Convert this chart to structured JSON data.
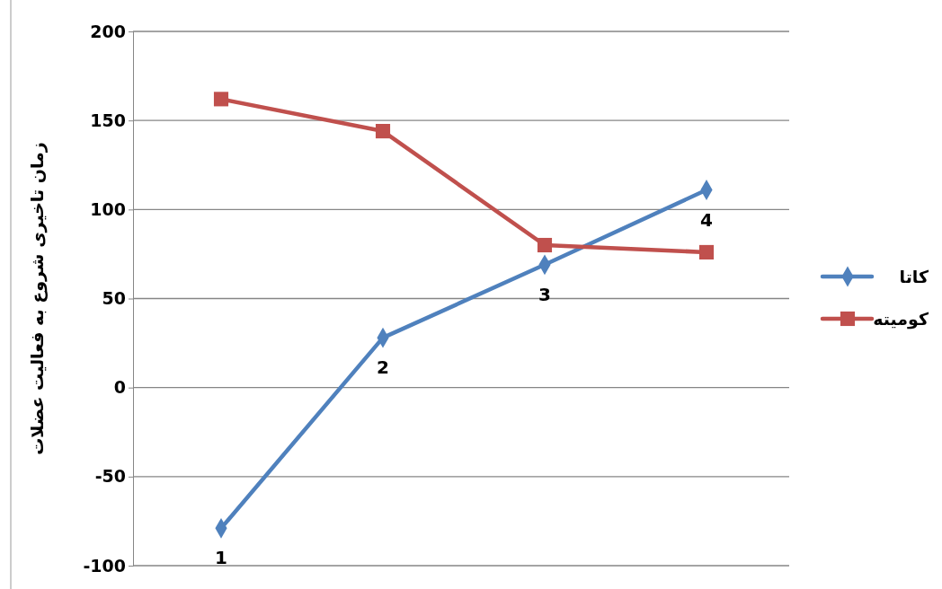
{
  "chart_data": {
    "type": "line",
    "ylabel": "زمان تاخیری شروع به فعالیت عضلات",
    "categories": [
      "1",
      "2",
      "3",
      "4"
    ],
    "series": [
      {
        "name": "کاتا",
        "color": "#4f81bd",
        "marker": "diamond",
        "values": [
          -79,
          28,
          69,
          111
        ]
      },
      {
        "name": "کومیته",
        "color": "#c0504d",
        "marker": "square",
        "values": [
          162,
          144,
          80,
          76
        ]
      }
    ],
    "ylim": [
      -100,
      200
    ],
    "yticks": [
      -100,
      -50,
      0,
      50,
      100,
      150,
      200
    ],
    "grid": "y",
    "legend": "right"
  }
}
